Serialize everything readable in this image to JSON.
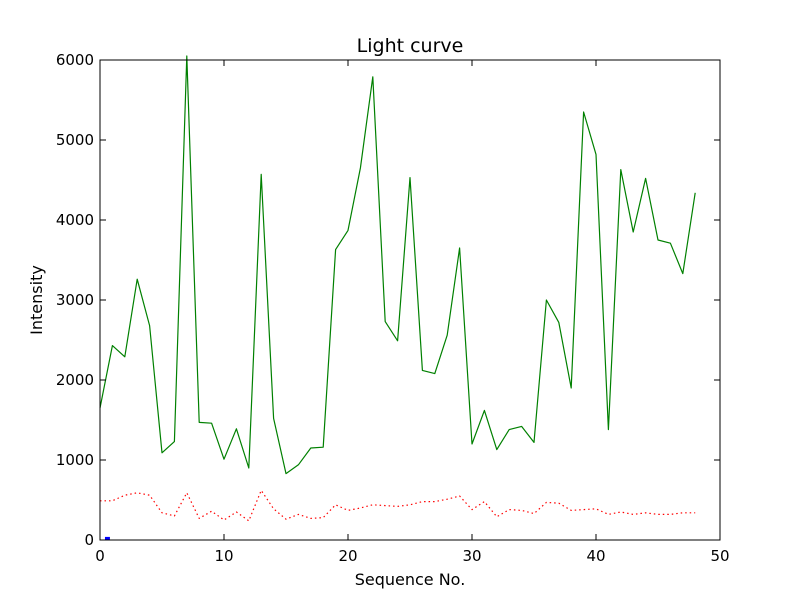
{
  "chart_data": {
    "type": "line",
    "title": "Light curve",
    "xlabel": "Sequence No.",
    "ylabel": "Intensity",
    "xlim": [
      0,
      50
    ],
    "ylim": [
      0,
      6000
    ],
    "xticks": [
      0,
      10,
      20,
      30,
      40,
      50
    ],
    "yticks": [
      0,
      1000,
      2000,
      3000,
      4000,
      5000,
      6000
    ],
    "grid": false,
    "legend": "none",
    "series": [
      {
        "style": "solid",
        "color": "#008000",
        "x": [
          0,
          1,
          2,
          3,
          4,
          5,
          6,
          7,
          8,
          9,
          10,
          11,
          12,
          13,
          14,
          15,
          16,
          17,
          18,
          19,
          20,
          21,
          22,
          23,
          24,
          25,
          26,
          27,
          28,
          29,
          30,
          31,
          32,
          33,
          34,
          35,
          36,
          37,
          38,
          39,
          40,
          41,
          42,
          43,
          44,
          45,
          46,
          47,
          48
        ],
        "y": [
          1650,
          2430,
          2290,
          3260,
          2680,
          1090,
          1230,
          6050,
          1470,
          1460,
          1010,
          1390,
          900,
          4570,
          1520,
          830,
          940,
          1150,
          1160,
          3630,
          3870,
          4650,
          5790,
          2730,
          2490,
          4530,
          2120,
          2080,
          2560,
          3650,
          1200,
          1620,
          1130,
          1380,
          1420,
          1220,
          3000,
          2720,
          1900,
          5350,
          4820,
          1380,
          4630,
          3850,
          4520,
          3750,
          3710,
          3330,
          4340
        ]
      },
      {
        "style": "dotted",
        "color": "#ff0000",
        "x": [
          0,
          1,
          2,
          3,
          4,
          5,
          6,
          7,
          8,
          9,
          10,
          11,
          12,
          13,
          14,
          15,
          16,
          17,
          18,
          19,
          20,
          21,
          22,
          23,
          24,
          25,
          26,
          27,
          28,
          29,
          30,
          31,
          32,
          33,
          34,
          35,
          36,
          37,
          38,
          39,
          40,
          41,
          42,
          43,
          44,
          45,
          46,
          47,
          48
        ],
        "y": [
          490,
          490,
          560,
          590,
          560,
          340,
          300,
          590,
          270,
          360,
          250,
          350,
          240,
          620,
          390,
          260,
          320,
          270,
          280,
          440,
          370,
          400,
          440,
          430,
          420,
          440,
          480,
          480,
          510,
          550,
          380,
          480,
          290,
          380,
          370,
          330,
          470,
          460,
          370,
          380,
          390,
          320,
          350,
          320,
          340,
          320,
          320,
          340,
          340
        ]
      },
      {
        "style": "solid",
        "color": "#0000ff",
        "x": [
          0.4,
          0.8
        ],
        "y": [
          20,
          20
        ]
      }
    ]
  }
}
